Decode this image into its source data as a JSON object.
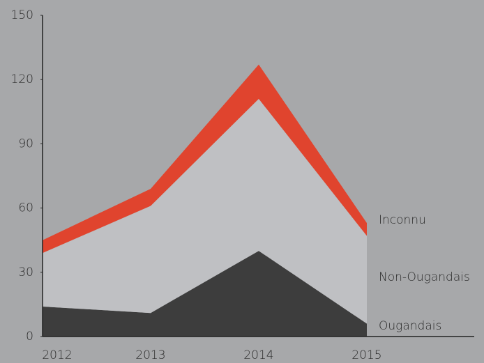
{
  "chart_data": {
    "type": "area",
    "stacked": true,
    "categories": [
      "2012",
      "2013",
      "2014",
      "2015"
    ],
    "series": [
      {
        "name": "Ougandais",
        "color": "#3d3d3d",
        "values": [
          14,
          11,
          40,
          6
        ]
      },
      {
        "name": "Non-Ougandais",
        "color": "#bfc0c3",
        "values": [
          25,
          50,
          71,
          41
        ]
      },
      {
        "name": "Inconnu",
        "color": "#e0442e",
        "values": [
          6,
          8,
          16,
          6
        ]
      }
    ],
    "ylim": [
      0,
      150
    ],
    "yticks": [
      0,
      30,
      60,
      90,
      120,
      150
    ]
  }
}
